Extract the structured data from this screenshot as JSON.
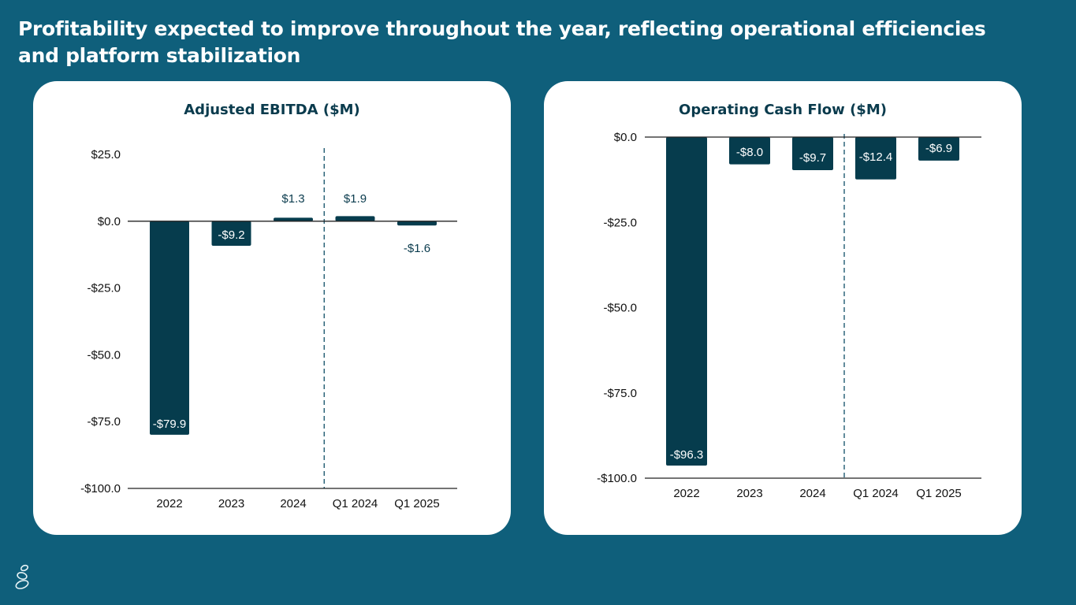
{
  "slide": {
    "title": "Profitability expected to improve throughout the year, reflecting operational efficiencies and platform stabilization",
    "logo_icon": "stacked-stones-icon"
  },
  "colors": {
    "background": "#0f5f7b",
    "bar": "#063c4d",
    "title_text": "#0a3b4d",
    "card": "#ffffff"
  },
  "chart_data": [
    {
      "type": "bar",
      "title": "Adjusted EBITDA ($M)",
      "categories": [
        "2022",
        "2023",
        "2024",
        "Q1 2024",
        "Q1 2025"
      ],
      "values": [
        -79.9,
        -9.2,
        1.3,
        1.9,
        -1.6
      ],
      "data_labels": [
        "-$79.9",
        "-$9.2",
        "$1.3",
        "$1.9",
        "-$1.6"
      ],
      "ylim": [
        -100,
        25
      ],
      "yticks": [
        25,
        0,
        -25,
        -50,
        -75,
        -100
      ],
      "ytick_labels": [
        "$25.0",
        "$0.0",
        "-$25.0",
        "-$50.0",
        "-$75.0",
        "-$100.0"
      ],
      "xlabel": "",
      "ylabel": "",
      "grid": false,
      "divider_after_category": "2024",
      "divider_style": "dashed"
    },
    {
      "type": "bar",
      "title": "Operating Cash Flow ($M)",
      "categories": [
        "2022",
        "2023",
        "2024",
        "Q1 2024",
        "Q1 2025"
      ],
      "values": [
        -96.3,
        -8.0,
        -9.7,
        -12.4,
        -6.9
      ],
      "data_labels": [
        "-$96.3",
        "-$8.0",
        "-$9.7",
        "-$12.4",
        "-$6.9"
      ],
      "ylim": [
        -100,
        0
      ],
      "yticks": [
        0,
        -25,
        -50,
        -75,
        -100
      ],
      "ytick_labels": [
        "$0.0",
        "-$25.0",
        "-$50.0",
        "-$75.0",
        "-$100.0"
      ],
      "xlabel": "",
      "ylabel": "",
      "grid": false,
      "divider_after_category": "2024",
      "divider_style": "dashed"
    }
  ]
}
